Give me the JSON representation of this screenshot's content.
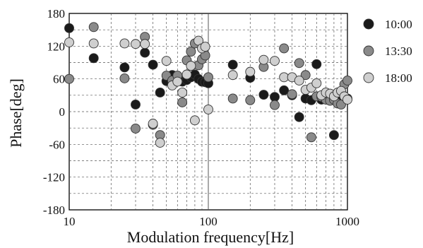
{
  "chart_data": {
    "type": "scatter",
    "xscale": "log",
    "xlim": [
      10,
      1000
    ],
    "ylim": [
      -180,
      180
    ],
    "xlabel": "Modulation frequency[Hz]",
    "ylabel": "Phase[deg]",
    "grid": true,
    "legend_position": "right",
    "xticks": [
      10,
      100,
      1000
    ],
    "xtick_labels": [
      "10",
      "100",
      "1000"
    ],
    "yticks": [
      -180,
      -120,
      -60,
      0,
      60,
      120,
      180
    ],
    "ytick_labels": [
      "-180",
      "-120",
      "-60",
      "0",
      "60",
      "120",
      "180"
    ],
    "series": [
      {
        "name": "10:00",
        "color": "#1a1a1a",
        "points": [
          [
            10,
            153
          ],
          [
            15,
            98
          ],
          [
            25,
            81
          ],
          [
            30,
            13
          ],
          [
            35,
            108
          ],
          [
            40,
            86
          ],
          [
            45,
            35
          ],
          [
            50,
            56
          ],
          [
            55,
            67
          ],
          [
            60,
            56
          ],
          [
            65,
            55
          ],
          [
            70,
            58
          ],
          [
            75,
            63
          ],
          [
            80,
            68
          ],
          [
            85,
            60
          ],
          [
            90,
            55
          ],
          [
            95,
            54
          ],
          [
            100,
            52
          ],
          [
            150,
            86
          ],
          [
            200,
            62
          ],
          [
            250,
            31
          ],
          [
            300,
            27
          ],
          [
            350,
            39
          ],
          [
            400,
            30
          ],
          [
            450,
            -10
          ],
          [
            500,
            24
          ],
          [
            550,
            21
          ],
          [
            600,
            87
          ],
          [
            650,
            22
          ],
          [
            800,
            -43
          ],
          [
            850,
            30
          ],
          [
            900,
            25
          ],
          [
            950,
            22
          ],
          [
            1000,
            24
          ]
        ]
      },
      {
        "name": "13:30",
        "color": "#8a8a8a",
        "points": [
          [
            10,
            60
          ],
          [
            15,
            155
          ],
          [
            25,
            61
          ],
          [
            30,
            -31
          ],
          [
            35,
            137
          ],
          [
            40,
            -24
          ],
          [
            45,
            -43
          ],
          [
            50,
            66
          ],
          [
            55,
            57
          ],
          [
            60,
            66
          ],
          [
            65,
            17
          ],
          [
            70,
            94
          ],
          [
            75,
            110
          ],
          [
            80,
            125
          ],
          [
            85,
            85
          ],
          [
            90,
            96
          ],
          [
            95,
            103
          ],
          [
            100,
            63
          ],
          [
            150,
            24
          ],
          [
            200,
            21
          ],
          [
            250,
            82
          ],
          [
            300,
            12
          ],
          [
            350,
            116
          ],
          [
            400,
            32
          ],
          [
            450,
            89
          ],
          [
            500,
            67
          ],
          [
            550,
            -47
          ],
          [
            600,
            28
          ],
          [
            650,
            27
          ],
          [
            700,
            22
          ],
          [
            750,
            20
          ],
          [
            800,
            22
          ],
          [
            850,
            15
          ],
          [
            900,
            13
          ],
          [
            950,
            50
          ],
          [
            1000,
            57
          ]
        ]
      },
      {
        "name": "18:00",
        "color": "#cfcfcf",
        "points": [
          [
            10,
            127
          ],
          [
            15,
            125
          ],
          [
            25,
            125
          ],
          [
            30,
            124
          ],
          [
            35,
            124
          ],
          [
            40,
            -22
          ],
          [
            45,
            -57
          ],
          [
            50,
            93
          ],
          [
            55,
            48
          ],
          [
            60,
            55
          ],
          [
            65,
            35
          ],
          [
            70,
            68
          ],
          [
            75,
            84
          ],
          [
            80,
            -16
          ],
          [
            85,
            130
          ],
          [
            90,
            116
          ],
          [
            95,
            119
          ],
          [
            100,
            4
          ],
          [
            150,
            67
          ],
          [
            200,
            73
          ],
          [
            250,
            95
          ],
          [
            300,
            93
          ],
          [
            350,
            63
          ],
          [
            400,
            63
          ],
          [
            450,
            57
          ],
          [
            500,
            40
          ],
          [
            550,
            44
          ],
          [
            600,
            52
          ],
          [
            650,
            30
          ],
          [
            700,
            35
          ],
          [
            750,
            33
          ],
          [
            800,
            28
          ],
          [
            850,
            35
          ],
          [
            900,
            38
          ],
          [
            950,
            28
          ],
          [
            1000,
            22
          ]
        ]
      }
    ]
  }
}
